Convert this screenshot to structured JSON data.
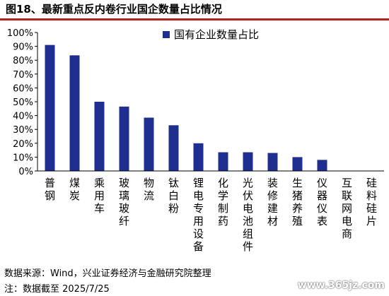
{
  "figure": {
    "title": "图18、最新重点反内卷行业国企数量占比情况",
    "source": "数据来源：Wind，兴业证券经济与金融研究院整理",
    "note": "注：数据截至 2025/7/25",
    "watermark": "www.365jz.com"
  },
  "colors": {
    "bar": "#1f2f8f",
    "accent_rule": "#b3211d",
    "axis": "#000000"
  },
  "chart_data": {
    "type": "bar",
    "categories": [
      "普钢",
      "煤炭",
      "乘用车",
      "玻璃玻纤",
      "物流",
      "钛白粉",
      "锂电专用设备",
      "化学制药",
      "光伏电池组件",
      "装修建材",
      "生猪养殖",
      "仪器仪表",
      "互联网电商",
      "硅料硅片"
    ],
    "series": [
      {
        "name": "国有企业数量占比",
        "values": [
          91,
          83.5,
          50,
          46.5,
          38.5,
          33,
          20,
          13.5,
          13.5,
          13,
          10,
          8,
          0,
          0
        ]
      }
    ],
    "ylim": [
      0,
      100
    ],
    "yticks": [
      0,
      10,
      20,
      30,
      40,
      50,
      60,
      70,
      80,
      90,
      100
    ],
    "ytick_labels": [
      "0%",
      "10%",
      "20%",
      "30%",
      "40%",
      "50%",
      "60%",
      "70%",
      "80%",
      "90%",
      "100%"
    ],
    "grid": false,
    "legend_position": "top-center"
  }
}
